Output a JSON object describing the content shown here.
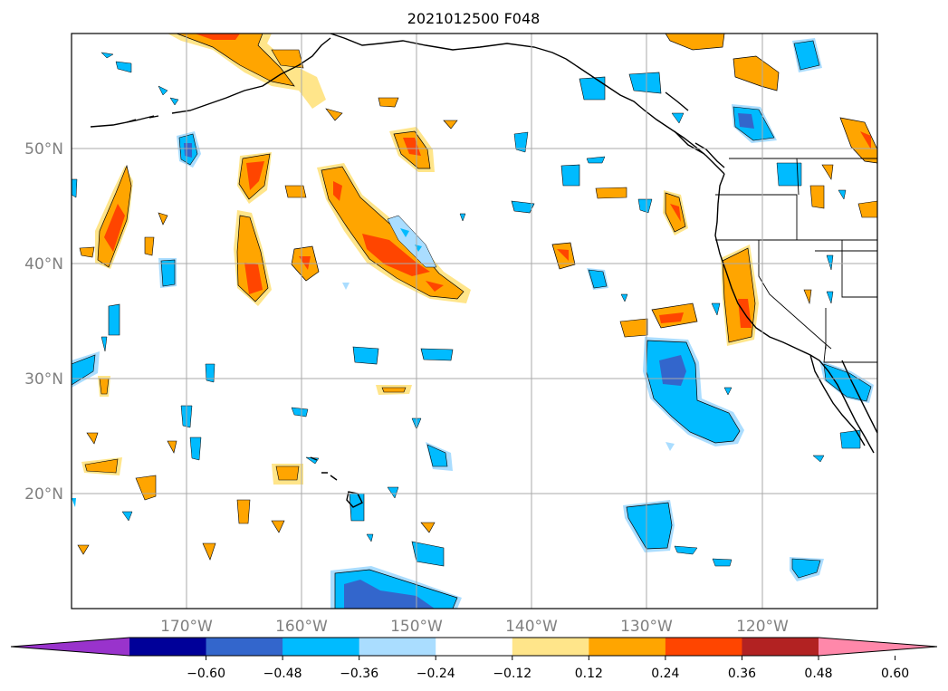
{
  "title": "2021012500 F048",
  "map": {
    "lon_labels": [
      "170°W",
      "160°W",
      "150°W",
      "140°W",
      "130°W",
      "120°W"
    ],
    "lat_labels": [
      "50°N",
      "40°N",
      "30°N",
      "20°N"
    ],
    "extent": {
      "lon_min": -180,
      "lon_max": -110,
      "lat_min": 10,
      "lat_max": 60
    }
  },
  "colorbar": {
    "ticks": [
      "−0.60",
      "−0.48",
      "−0.36",
      "−0.24",
      "−0.12",
      "0.12",
      "0.24",
      "0.36",
      "0.48",
      "0.60"
    ],
    "colors": [
      "#9933cc",
      "#000099",
      "#3366cc",
      "#00bbff",
      "#aaddff",
      "#ffffff",
      "#ffe58a",
      "#ffa500",
      "#ff4500",
      "#b22222",
      "#ff88aa"
    ]
  },
  "colors": {
    "very_light_blue": "#aaddff",
    "light_blue": "#00bbff",
    "medium_blue": "#3366cc",
    "light_yellow": "#ffe58a",
    "orange": "#ffa500",
    "red_orange": "#ff4500"
  }
}
